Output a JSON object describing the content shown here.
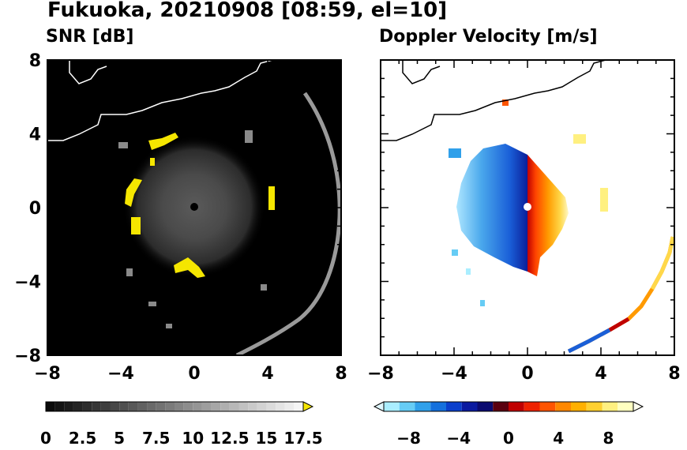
{
  "title": "Fukuoka, 20210908 [08:59, el=10]",
  "chart_data": [
    {
      "type": "heatmap",
      "title": "SNR [dB]",
      "xlim": [
        -8,
        8
      ],
      "ylim": [
        -8,
        8
      ],
      "x_ticks": [
        -8,
        -4,
        0,
        4,
        8
      ],
      "y_ticks": [
        -8,
        -4,
        0,
        4,
        8
      ],
      "x_tick_labels": [
        "−8",
        "−4",
        "0",
        "4",
        "8"
      ],
      "y_tick_labels": [
        "−8",
        "−4",
        "0",
        "4",
        "8"
      ],
      "background": "#000000",
      "colorbar": {
        "min": 0,
        "max": 17.5,
        "extend": "max",
        "ticks": [
          0,
          2.5,
          5,
          7.5,
          10,
          12.5,
          15,
          17.5
        ],
        "tick_labels": [
          "0",
          "2.5",
          "5",
          "7.5",
          "10",
          "12.5",
          "15",
          "17.5"
        ],
        "low_color": "#000000",
        "high_color": "#ffffff",
        "over_color": "#f5e600"
      }
    },
    {
      "type": "heatmap",
      "title": "Doppler Velocity [m/s]",
      "xlim": [
        -8,
        8
      ],
      "ylim": [
        -8,
        8
      ],
      "x_ticks": [
        -8,
        -4,
        0,
        4,
        8
      ],
      "y_ticks": [
        -8,
        -4,
        0,
        4,
        8
      ],
      "x_tick_labels": [
        "−8",
        "−4",
        "0",
        "4",
        "8"
      ],
      "background": "#ffffff",
      "colorbar": {
        "min": -10,
        "max": 10,
        "extend": "both",
        "ticks": [
          -8,
          -4,
          0,
          4,
          8
        ],
        "tick_labels": [
          "−8",
          "−4",
          "0",
          "4",
          "8"
        ],
        "colors": [
          "#e0f8ff",
          "#aaeeff",
          "#66ccf5",
          "#30a0ea",
          "#1470dd",
          "#0a3fcc",
          "#0a1aa0",
          "#0a0a70",
          "#5a0010",
          "#c00000",
          "#ee2200",
          "#ff5500",
          "#ff8800",
          "#ffb000",
          "#ffd030",
          "#fff080",
          "#ffffc0",
          "#fffff0"
        ]
      }
    }
  ]
}
